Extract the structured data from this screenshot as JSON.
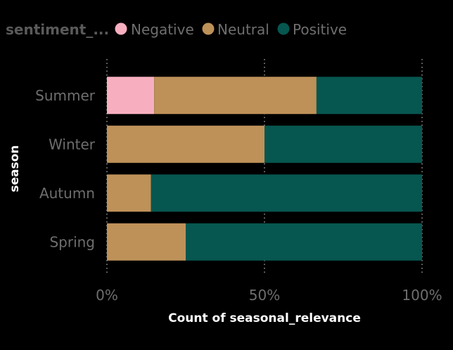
{
  "legend": {
    "title": "sentiment_...",
    "items": [
      {
        "label": "Negative",
        "color": "#F7AFC0"
      },
      {
        "label": "Neutral",
        "color": "#BE9159"
      },
      {
        "label": "Positive",
        "color": "#065750"
      }
    ]
  },
  "chart_data": {
    "type": "bar",
    "orientation": "horizontal",
    "stacking": "percent",
    "categories": [
      "Summer",
      "Winter",
      "Autumn",
      "Spring"
    ],
    "series": [
      {
        "name": "Negative",
        "values": [
          15,
          0,
          0,
          0
        ]
      },
      {
        "name": "Neutral",
        "values": [
          51.5,
          50,
          14,
          25
        ]
      },
      {
        "name": "Positive",
        "values": [
          33.5,
          50,
          86,
          75
        ]
      }
    ],
    "xlabel": "Count of seasonal_relevance",
    "ylabel": "season",
    "xticks": [
      "0%",
      "50%",
      "100%"
    ],
    "xlim": [
      0,
      100
    ],
    "grid": true,
    "legend_position": "top-left"
  }
}
